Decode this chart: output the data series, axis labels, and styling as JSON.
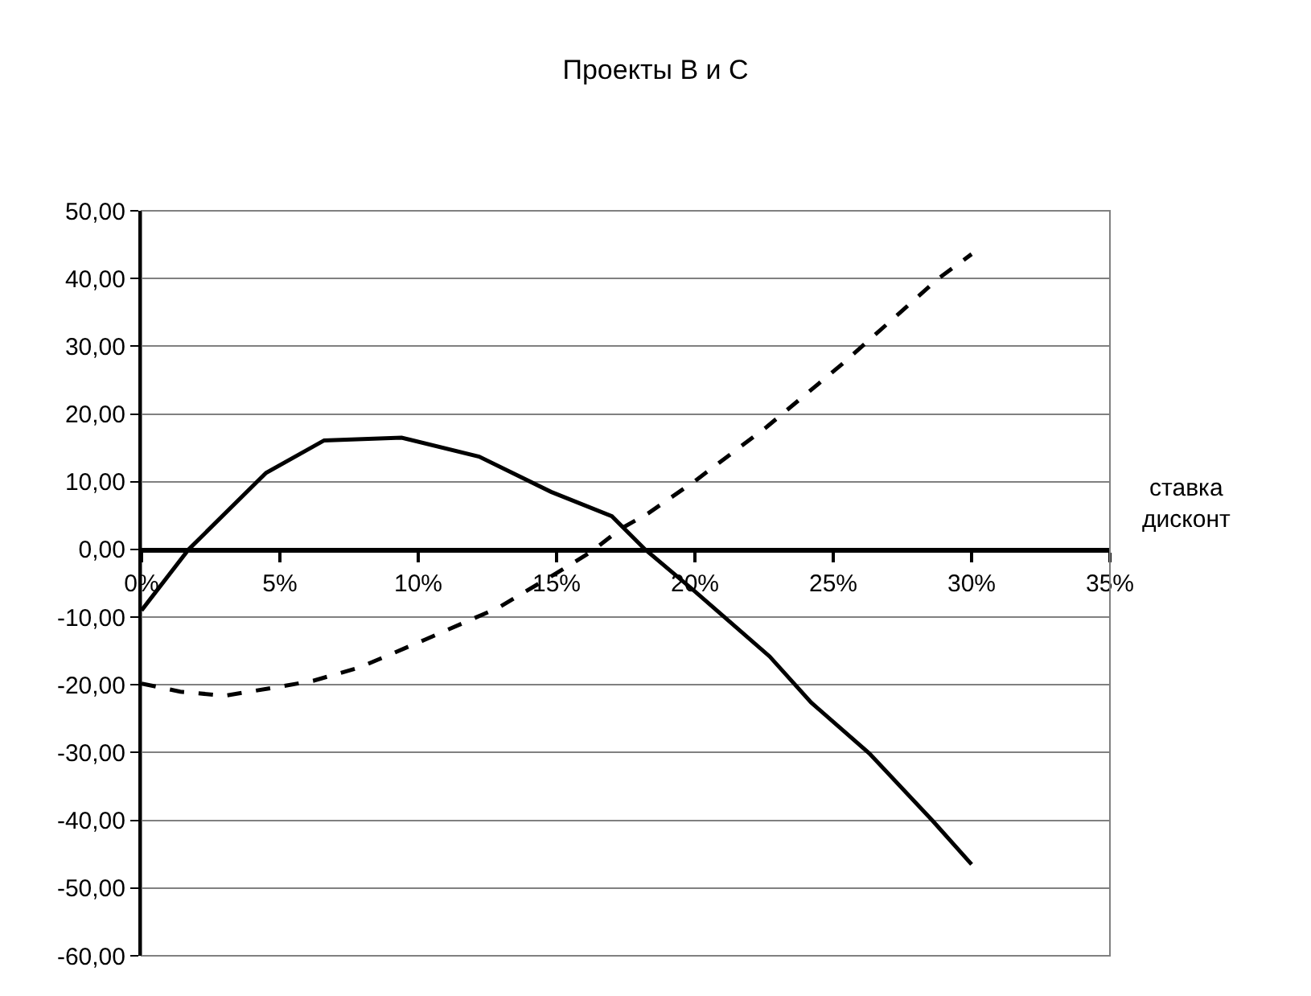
{
  "chart_data": {
    "type": "line",
    "title": "Проекты В и С",
    "xlabel": "ставка\nдисконт",
    "series": [
      {
        "color": "#000000",
        "line_style": "solid",
        "x": [
          0,
          1.7,
          4.5,
          6.6,
          9.4,
          12.2,
          14.8,
          17.0,
          18.2,
          20.0,
          22.7,
          24.2,
          26.3,
          28.6,
          30.0
        ],
        "values": [
          -9.0,
          0.0,
          11.3,
          16.1,
          16.5,
          13.7,
          8.5,
          4.9,
          0.0,
          -6.2,
          -15.8,
          -22.6,
          -30.1,
          -40.1,
          -46.5
        ]
      },
      {
        "color": "#000000",
        "line_style": "dashed",
        "x": [
          0,
          1.4,
          3.0,
          5.1,
          6.2,
          7.9,
          10.2,
          12.9,
          15.2,
          16.3,
          17.3,
          18.3,
          20.0,
          22.6,
          25.3,
          28.8,
          30.0
        ],
        "values": [
          -19.8,
          -21.0,
          -21.6,
          -20.2,
          -19.4,
          -17.4,
          -13.4,
          -8.6,
          -3.0,
          -0.2,
          3.0,
          5.3,
          10.1,
          18.1,
          27.3,
          40.0,
          43.6
        ]
      }
    ],
    "xlim": [
      0,
      35
    ],
    "xticks": [
      {
        "value": 0,
        "label": "0%"
      },
      {
        "value": 5,
        "label": "5%"
      },
      {
        "value": 10,
        "label": "10%"
      },
      {
        "value": 15,
        "label": "15%"
      },
      {
        "value": 20,
        "label": "20%"
      },
      {
        "value": 25,
        "label": "25%"
      },
      {
        "value": 30,
        "label": "30%"
      },
      {
        "value": 35,
        "label": "35%"
      }
    ],
    "ylim": [
      -60,
      50
    ],
    "yticks": [
      {
        "value": 50,
        "label": "50,00"
      },
      {
        "value": 40,
        "label": "40,00"
      },
      {
        "value": 30,
        "label": "30,00"
      },
      {
        "value": 20,
        "label": "20,00"
      },
      {
        "value": 10,
        "label": "10,00"
      },
      {
        "value": 0,
        "label": "0,00"
      },
      {
        "value": -10,
        "label": "-10,00"
      },
      {
        "value": -20,
        "label": "-20,00"
      },
      {
        "value": -30,
        "label": "-30,00"
      },
      {
        "value": -40,
        "label": "-40,00"
      },
      {
        "value": -50,
        "label": "-50,00"
      },
      {
        "value": -60,
        "label": "-60,00"
      }
    ],
    "grid": "y",
    "marker": "none"
  }
}
